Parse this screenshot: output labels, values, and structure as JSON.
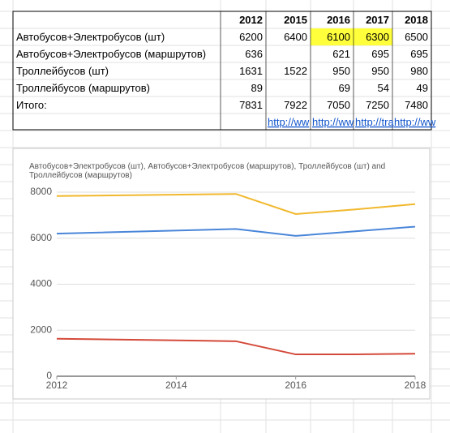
{
  "table": {
    "header": [
      null,
      2012,
      2015,
      2016,
      2017,
      2018
    ],
    "rows": [
      [
        "Автобусов+Электробусов (шт)",
        6200,
        6400,
        6100,
        6300,
        6500
      ],
      [
        "Автобусов+Электробусов (маршрутов)",
        636,
        null,
        621,
        695,
        695
      ],
      [
        "Троллейбусов (шт)",
        1631,
        1522,
        950,
        950,
        980
      ],
      [
        "Троллейбусов (маршрутов)",
        89,
        null,
        69,
        54,
        49
      ],
      [
        "Итого:",
        7831,
        7922,
        7050,
        7250,
        7480
      ],
      [
        null,
        null,
        "http://ww",
        "http://ww",
        "http://tra",
        "http://ww"
      ]
    ]
  },
  "chart_data": {
    "type": "line",
    "title": "Автобусов+Электробусов (шт), Автобусов+Электробусов (маршрутов), Троллейбусов (шт) and Троллейбусов (маршрутов)",
    "x": [
      2012,
      2015,
      2016,
      2017,
      2018
    ],
    "series": [
      {
        "color": "#f1b82d",
        "values": [
          7831,
          7922,
          7050,
          7250,
          7480
        ]
      },
      {
        "color": "#4a86d9",
        "values": [
          6200,
          6400,
          6100,
          6300,
          6500
        ]
      },
      {
        "color": "#d44a3a",
        "values": [
          1631,
          1522,
          950,
          950,
          980
        ]
      }
    ],
    "xlim": [
      2012,
      2018
    ],
    "xticks": [
      2012,
      2014,
      2016,
      2018
    ],
    "ylim": [
      0,
      8000
    ],
    "yticks": [
      0,
      2000,
      4000,
      6000,
      8000
    ],
    "grid": true
  }
}
